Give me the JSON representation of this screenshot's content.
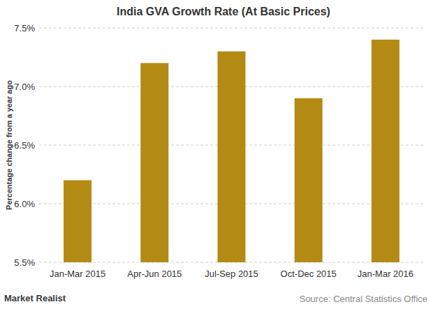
{
  "chart_data": {
    "type": "bar",
    "title": "India GVA Growth Rate (At Basic Prices)",
    "ylabel": "Percentage change from a year ago",
    "categories": [
      "Jan-Mar 2015",
      "Apr-Jun 2015",
      "Jul-Sep 2015",
      "Oct-Dec 2015",
      "Jan-Mar 2016"
    ],
    "values": [
      6.2,
      7.2,
      7.3,
      6.9,
      7.4
    ],
    "color": "#b38b14",
    "ylim": [
      5.5,
      7.5
    ],
    "yticks": [
      {
        "value": 5.5,
        "label": "5.5%"
      },
      {
        "value": 6.0,
        "label": "6.0%"
      },
      {
        "value": 6.5,
        "label": "6.5%"
      },
      {
        "value": 7.0,
        "label": "7.0%"
      },
      {
        "value": 7.5,
        "label": "7.5%"
      }
    ],
    "grid": true,
    "source": "Source: Central Statistics Office",
    "logo": "Market Realist"
  }
}
